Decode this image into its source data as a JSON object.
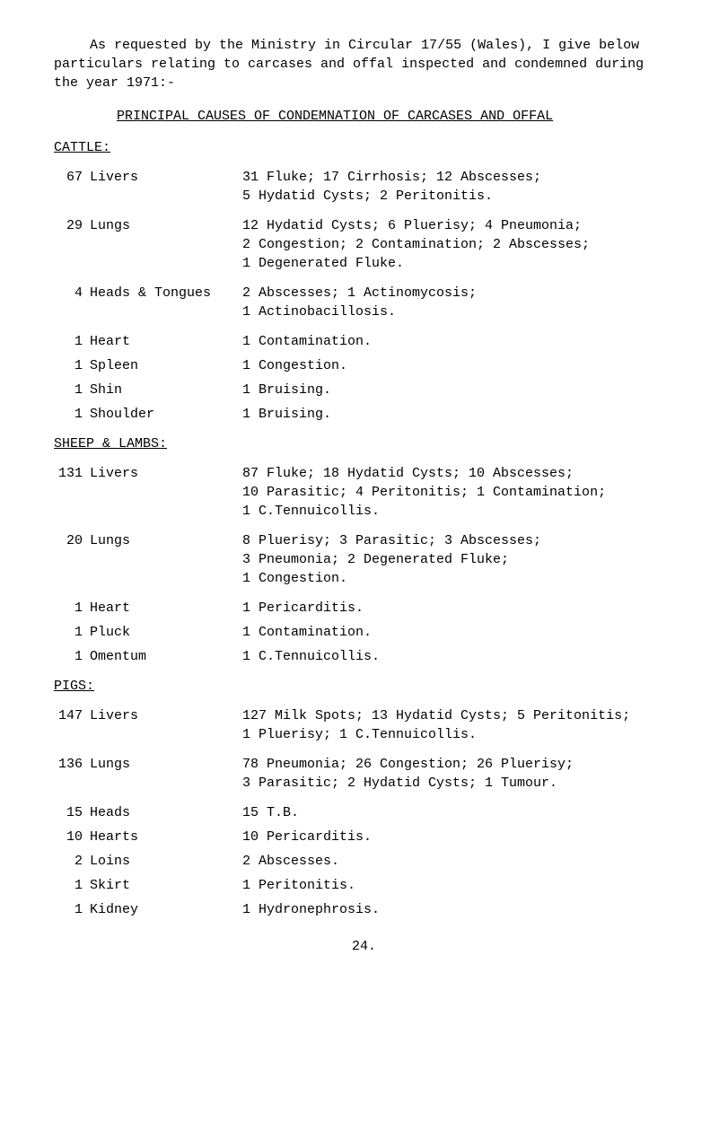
{
  "intro": "As requested by the Ministry in Circular 17/55 (Wales), I give below particulars relating to carcases and offal inspected and condemned during the year 1971:-",
  "mainTitle": "PRINCIPAL CAUSES OF CONDEMNATION OF CARCASES AND OFFAL",
  "sections": {
    "cattle": {
      "header": "CATTLE:",
      "rows": [
        {
          "num": "67",
          "label": "Livers",
          "desc": "31 Fluke;  17 Cirrhosis;  12 Abscesses;\n5 Hydatid Cysts;  2 Peritonitis."
        },
        {
          "num": "29",
          "label": "Lungs",
          "desc": "12 Hydatid Cysts;  6 Pluerisy;  4 Pneumonia;\n2 Congestion;  2 Contamination; 2 Abscesses;\n1 Degenerated Fluke."
        },
        {
          "num": "4",
          "label": "Heads & Tongues",
          "desc": "2 Abscesses;  1 Actinomycosis;\n1 Actinobacillosis."
        },
        {
          "num": "1",
          "label": "Heart",
          "desc": "1 Contamination."
        },
        {
          "num": "1",
          "label": "Spleen",
          "desc": "1 Congestion."
        },
        {
          "num": "1",
          "label": "Shin",
          "desc": "1 Bruising."
        },
        {
          "num": "1",
          "label": "Shoulder",
          "desc": "1 Bruising."
        }
      ]
    },
    "sheep": {
      "header": "SHEEP & LAMBS:",
      "rows": [
        {
          "num": "131",
          "label": "Livers",
          "desc": "87 Fluke;  18 Hydatid Cysts;  10 Abscesses;\n10 Parasitic;  4 Peritonitis;  1 Contamination;\n1 C.Tennuicollis."
        },
        {
          "num": "20",
          "label": "Lungs",
          "desc": "8 Pluerisy;  3 Parasitic;  3 Abscesses;\n3 Pneumonia;  2 Degenerated Fluke;\n1 Congestion."
        },
        {
          "num": "1",
          "label": "Heart",
          "desc": "1 Pericarditis."
        },
        {
          "num": "1",
          "label": "Pluck",
          "desc": "1 Contamination."
        },
        {
          "num": "1",
          "label": "Omentum",
          "desc": "1 C.Tennuicollis."
        }
      ]
    },
    "pigs": {
      "header": "PIGS:",
      "rows": [
        {
          "num": "147",
          "label": "Livers",
          "desc": "127 Milk Spots;  13 Hydatid Cysts;  5 Peritonitis;\n1 Pluerisy;  1 C.Tennuicollis."
        },
        {
          "num": "136",
          "label": "Lungs",
          "desc": "78 Pneumonia;  26 Congestion;  26 Pluerisy;\n3 Parasitic;  2 Hydatid Cysts;  1 Tumour."
        },
        {
          "num": "15",
          "label": "Heads",
          "desc": "15 T.B."
        },
        {
          "num": "10",
          "label": "Hearts",
          "desc": "10 Pericarditis."
        },
        {
          "num": "2",
          "label": "Loins",
          "desc": "2 Abscesses."
        },
        {
          "num": "1",
          "label": "Skirt",
          "desc": "1 Peritonitis."
        },
        {
          "num": "1",
          "label": "Kidney",
          "desc": "1 Hydronephrosis."
        }
      ]
    }
  },
  "pageNumber": "24."
}
